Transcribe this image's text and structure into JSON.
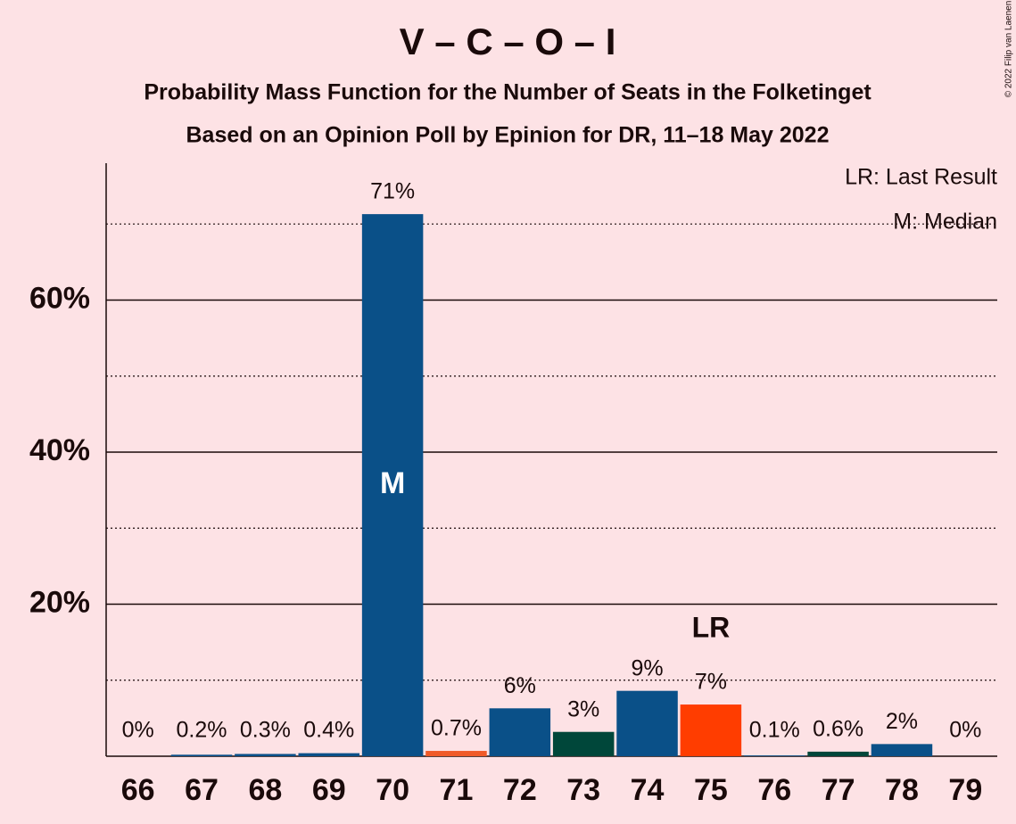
{
  "chart_data": {
    "type": "bar",
    "title": "V – C – O – I",
    "subtitle": "Probability Mass Function for the Number of Seats in the Folketinget",
    "subtitle2": "Based on an Opinion Poll by Epinion for DR, 11–18 May 2022",
    "copyright": "© 2022 Filip van Laenen",
    "categories": [
      66,
      67,
      68,
      69,
      70,
      71,
      72,
      73,
      74,
      75,
      76,
      77,
      78,
      79
    ],
    "values": [
      0,
      0.2,
      0.3,
      0.4,
      71.3,
      0.7,
      6.3,
      3.2,
      8.6,
      6.8,
      0.1,
      0.6,
      1.6,
      0
    ],
    "value_labels": [
      "0%",
      "0.2%",
      "0.3%",
      "0.4%",
      "71%",
      "0.7%",
      "6%",
      "3%",
      "9%",
      "7%",
      "0.1%",
      "0.6%",
      "2%",
      "0%"
    ],
    "colors": [
      "#0a5088",
      "#0a5088",
      "#0a5088",
      "#0a5088",
      "#0a5088",
      "#f05a28",
      "#0a5088",
      "#00473a",
      "#0a5088",
      "#ff3d00",
      "#0a5088",
      "#00473a",
      "#0a5088",
      "#0a5088"
    ],
    "ylim": [
      0,
      78
    ],
    "yticks": [
      {
        "value": 20,
        "label": "20%"
      },
      {
        "value": 40,
        "label": "40%"
      },
      {
        "value": 60,
        "label": "60%"
      }
    ],
    "minor_yticks": [
      10,
      30,
      50,
      70
    ],
    "median": 70,
    "median_label": "M",
    "last_result": 75,
    "last_result_label": "LR",
    "legend": [
      "LR: Last Result",
      "M: Median"
    ]
  }
}
